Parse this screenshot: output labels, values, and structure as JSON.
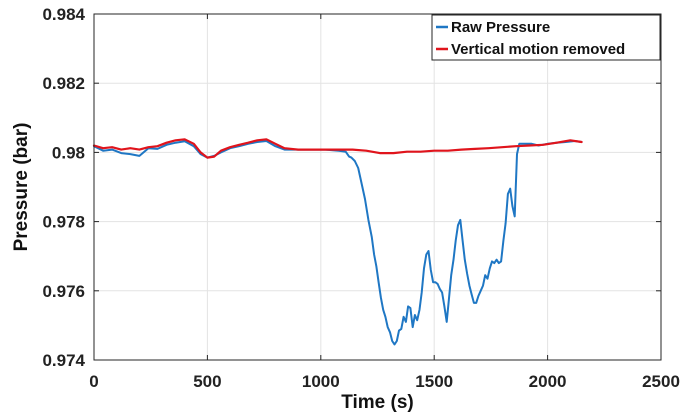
{
  "chart_data": {
    "type": "line",
    "xlabel": "Time (s)",
    "ylabel": "Pressure (bar)",
    "xlim": [
      0,
      2500
    ],
    "ylim": [
      0.974,
      0.984
    ],
    "x_ticks": [
      0,
      500,
      1000,
      1500,
      2000,
      2500
    ],
    "y_ticks": [
      0.974,
      0.976,
      0.978,
      0.98,
      0.982,
      0.984
    ],
    "x_tick_labels": [
      "0",
      "500",
      "1000",
      "1500",
      "2000",
      "2500"
    ],
    "y_tick_labels": [
      "0.974",
      "0.976",
      "0.978",
      "0.98",
      "0.982",
      "0.984"
    ],
    "grid": true,
    "legend_position": "top-right",
    "series": [
      {
        "name": "Raw Pressure",
        "color": "#1f77c4",
        "points": [
          [
            0,
            0.98018
          ],
          [
            40,
            0.98005
          ],
          [
            80,
            0.98008
          ],
          [
            120,
            0.97998
          ],
          [
            160,
            0.97995
          ],
          [
            200,
            0.9799
          ],
          [
            240,
            0.98012
          ],
          [
            280,
            0.9801
          ],
          [
            320,
            0.98022
          ],
          [
            360,
            0.98028
          ],
          [
            400,
            0.98032
          ],
          [
            440,
            0.98018
          ],
          [
            470,
            0.97995
          ],
          [
            500,
            0.97985
          ],
          [
            530,
            0.9799
          ],
          [
            560,
            0.98
          ],
          [
            600,
            0.98012
          ],
          [
            640,
            0.98018
          ],
          [
            680,
            0.98025
          ],
          [
            720,
            0.9803
          ],
          [
            760,
            0.98033
          ],
          [
            800,
            0.98018
          ],
          [
            840,
            0.98008
          ],
          [
            900,
            0.98008
          ],
          [
            960,
            0.98008
          ],
          [
            1020,
            0.98008
          ],
          [
            1080,
            0.98005
          ],
          [
            1110,
            0.98002
          ],
          [
            1125,
            0.97988
          ],
          [
            1135,
            0.97985
          ],
          [
            1150,
            0.97975
          ],
          [
            1165,
            0.97955
          ],
          [
            1180,
            0.9791
          ],
          [
            1195,
            0.97865
          ],
          [
            1210,
            0.97805
          ],
          [
            1225,
            0.97755
          ],
          [
            1235,
            0.97705
          ],
          [
            1245,
            0.9767
          ],
          [
            1255,
            0.97625
          ],
          [
            1265,
            0.9758
          ],
          [
            1275,
            0.97545
          ],
          [
            1285,
            0.97525
          ],
          [
            1295,
            0.97495
          ],
          [
            1305,
            0.9748
          ],
          [
            1315,
            0.97455
          ],
          [
            1325,
            0.97445
          ],
          [
            1335,
            0.97455
          ],
          [
            1345,
            0.97485
          ],
          [
            1355,
            0.9749
          ],
          [
            1365,
            0.97525
          ],
          [
            1375,
            0.9751
          ],
          [
            1385,
            0.97555
          ],
          [
            1395,
            0.9755
          ],
          [
            1405,
            0.97495
          ],
          [
            1415,
            0.9753
          ],
          [
            1425,
            0.97515
          ],
          [
            1435,
            0.97545
          ],
          [
            1445,
            0.97595
          ],
          [
            1455,
            0.97665
          ],
          [
            1465,
            0.97705
          ],
          [
            1475,
            0.97715
          ],
          [
            1485,
            0.9766
          ],
          [
            1495,
            0.97625
          ],
          [
            1505,
            0.97625
          ],
          [
            1515,
            0.9762
          ],
          [
            1525,
            0.97605
          ],
          [
            1535,
            0.97595
          ],
          [
            1545,
            0.97555
          ],
          [
            1555,
            0.9751
          ],
          [
            1565,
            0.97575
          ],
          [
            1575,
            0.97645
          ],
          [
            1585,
            0.9769
          ],
          [
            1595,
            0.97745
          ],
          [
            1605,
            0.9779
          ],
          [
            1615,
            0.97805
          ],
          [
            1625,
            0.97745
          ],
          [
            1635,
            0.9769
          ],
          [
            1645,
            0.9765
          ],
          [
            1655,
            0.97615
          ],
          [
            1665,
            0.9759
          ],
          [
            1675,
            0.97565
          ],
          [
            1685,
            0.97565
          ],
          [
            1695,
            0.97585
          ],
          [
            1705,
            0.976
          ],
          [
            1715,
            0.97615
          ],
          [
            1725,
            0.97645
          ],
          [
            1735,
            0.97635
          ],
          [
            1745,
            0.97665
          ],
          [
            1755,
            0.97685
          ],
          [
            1765,
            0.9768
          ],
          [
            1775,
            0.9769
          ],
          [
            1785,
            0.9768
          ],
          [
            1795,
            0.97685
          ],
          [
            1805,
            0.97745
          ],
          [
            1815,
            0.97795
          ],
          [
            1825,
            0.9788
          ],
          [
            1835,
            0.97895
          ],
          [
            1845,
            0.97845
          ],
          [
            1855,
            0.97815
          ],
          [
            1865,
            0.97995
          ],
          [
            1875,
            0.98025
          ],
          [
            1885,
            0.98025
          ],
          [
            1900,
            0.98025
          ],
          [
            1930,
            0.98025
          ],
          [
            1960,
            0.9802
          ],
          [
            2000,
            0.98025
          ],
          [
            2040,
            0.98028
          ],
          [
            2080,
            0.9803
          ],
          [
            2120,
            0.98033
          ],
          [
            2150,
            0.9803
          ]
        ]
      },
      {
        "name": "Vertical motion removed",
        "color": "#e0141c",
        "points": [
          [
            0,
            0.9802
          ],
          [
            40,
            0.98012
          ],
          [
            80,
            0.98015
          ],
          [
            120,
            0.98008
          ],
          [
            160,
            0.98012
          ],
          [
            200,
            0.98008
          ],
          [
            240,
            0.98015
          ],
          [
            280,
            0.98018
          ],
          [
            320,
            0.98028
          ],
          [
            360,
            0.98035
          ],
          [
            400,
            0.98038
          ],
          [
            440,
            0.98025
          ],
          [
            470,
            0.98
          ],
          [
            500,
            0.97985
          ],
          [
            530,
            0.97988
          ],
          [
            560,
            0.98005
          ],
          [
            600,
            0.98015
          ],
          [
            640,
            0.98022
          ],
          [
            680,
            0.98028
          ],
          [
            720,
            0.98035
          ],
          [
            760,
            0.98038
          ],
          [
            800,
            0.98025
          ],
          [
            840,
            0.98012
          ],
          [
            900,
            0.98008
          ],
          [
            960,
            0.98008
          ],
          [
            1020,
            0.98008
          ],
          [
            1080,
            0.98008
          ],
          [
            1140,
            0.98008
          ],
          [
            1200,
            0.98005
          ],
          [
            1260,
            0.97998
          ],
          [
            1320,
            0.97998
          ],
          [
            1380,
            0.98002
          ],
          [
            1440,
            0.98002
          ],
          [
            1500,
            0.98005
          ],
          [
            1560,
            0.98005
          ],
          [
            1620,
            0.98008
          ],
          [
            1680,
            0.9801
          ],
          [
            1740,
            0.98012
          ],
          [
            1800,
            0.98015
          ],
          [
            1860,
            0.98018
          ],
          [
            1920,
            0.9802
          ],
          [
            1980,
            0.98022
          ],
          [
            2040,
            0.98028
          ],
          [
            2100,
            0.98035
          ],
          [
            2150,
            0.9803
          ]
        ]
      }
    ]
  }
}
